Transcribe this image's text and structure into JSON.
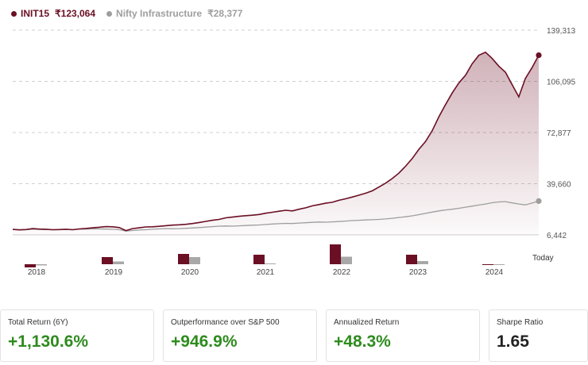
{
  "legend": [
    {
      "name": "INIT15",
      "value": "₹123,064",
      "color": "#6b0f24"
    },
    {
      "name": "Nifty Infrastructure",
      "value": "₹28,377",
      "color": "#9e9e9e"
    }
  ],
  "chart_data": {
    "type": "line",
    "y_ticks": [
      "139,313",
      "106,095",
      "72,877",
      "39,660",
      "6,442"
    ],
    "ylim": [
      6442,
      139313
    ],
    "x_ticks": [
      "2018",
      "2019",
      "2020",
      "2021",
      "2022",
      "2023",
      "2024"
    ],
    "today_label": "Today",
    "grid": true,
    "x": [
      0,
      1,
      2,
      3,
      4,
      5,
      6,
      7,
      8,
      9,
      10,
      11,
      12,
      13,
      14,
      15,
      16,
      17,
      18,
      19,
      20,
      21,
      22,
      23,
      24,
      25,
      26,
      27,
      28,
      29,
      30,
      31,
      32,
      33,
      34,
      35,
      36,
      37,
      38,
      39,
      40,
      41,
      42,
      43,
      44,
      45,
      46,
      47,
      48,
      49,
      50,
      51,
      52,
      53,
      54,
      55,
      56,
      57,
      58,
      59,
      60,
      61,
      62,
      63,
      64,
      65,
      66,
      67,
      68,
      69,
      70,
      71,
      72,
      73,
      74,
      75,
      76,
      77,
      78,
      79
    ],
    "series": [
      {
        "name": "INIT15",
        "color": "#6b0f24",
        "fill": true,
        "values": [
          10000,
          9700,
          9900,
          10500,
          10200,
          10100,
          9800,
          9900,
          10100,
          9800,
          10300,
          10600,
          11000,
          11400,
          11800,
          11700,
          11200,
          9200,
          10500,
          11000,
          11600,
          11700,
          12000,
          12400,
          12800,
          13000,
          13300,
          13800,
          14500,
          15200,
          15900,
          16500,
          17500,
          18000,
          18500,
          18900,
          19200,
          19700,
          20500,
          21100,
          21800,
          22400,
          22000,
          23100,
          24000,
          25300,
          26100,
          27000,
          27600,
          28900,
          29900,
          31000,
          32200,
          33500,
          35000,
          37500,
          40000,
          43000,
          46500,
          51000,
          56000,
          62000,
          67000,
          74000,
          83000,
          91000,
          98500,
          105000,
          110000,
          117500,
          123000,
          125000,
          121000,
          116000,
          112000,
          104000,
          96000,
          108000,
          115000,
          123064
        ]
      },
      {
        "name": "Nifty Infrastructure",
        "color": "#9e9e9e",
        "fill": false,
        "values": [
          10000,
          9800,
          9900,
          10100,
          10000,
          9900,
          9800,
          9900,
          10000,
          9900,
          10100,
          10200,
          10400,
          10300,
          10200,
          10100,
          9800,
          8900,
          9300,
          9600,
          9800,
          10100,
          10300,
          10500,
          10400,
          10500,
          10700,
          10900,
          11200,
          11500,
          11800,
          12100,
          12200,
          12100,
          12300,
          12500,
          12700,
          12900,
          13200,
          13500,
          13700,
          13900,
          13800,
          14100,
          14300,
          14600,
          14800,
          14700,
          14900,
          15100,
          15400,
          15700,
          15900,
          16100,
          16300,
          16500,
          16800,
          17200,
          17700,
          18200,
          18800,
          19600,
          20400,
          21200,
          22000,
          22600,
          23100,
          23700,
          24400,
          25100,
          25800,
          26500,
          27300,
          27800,
          28000,
          27200,
          26500,
          25900,
          27100,
          28377
        ]
      }
    ],
    "annual_returns": [
      {
        "year": "2018",
        "init": -4,
        "nifty": -1.5
      },
      {
        "year": "2019",
        "init": 9,
        "nifty": 3.5
      },
      {
        "year": "2020",
        "init": 13,
        "nifty": 9
      },
      {
        "year": "2021",
        "init": 12,
        "nifty": 1
      },
      {
        "year": "2022",
        "init": 25,
        "nifty": 9.5
      },
      {
        "year": "2023",
        "init": 12,
        "nifty": 4
      },
      {
        "year": "2024",
        "init": -1,
        "nifty": -0.5
      }
    ]
  },
  "stats": [
    {
      "label": "Total Return (6Y)",
      "value": "+1,130.6%",
      "tone": "pos"
    },
    {
      "label": "Outperformance over S&P 500",
      "value": "+946.9%",
      "tone": "pos"
    },
    {
      "label": "Annualized Return",
      "value": "+48.3%",
      "tone": "pos"
    },
    {
      "label": "Sharpe Ratio",
      "value": "1.65",
      "tone": "neutral"
    }
  ]
}
